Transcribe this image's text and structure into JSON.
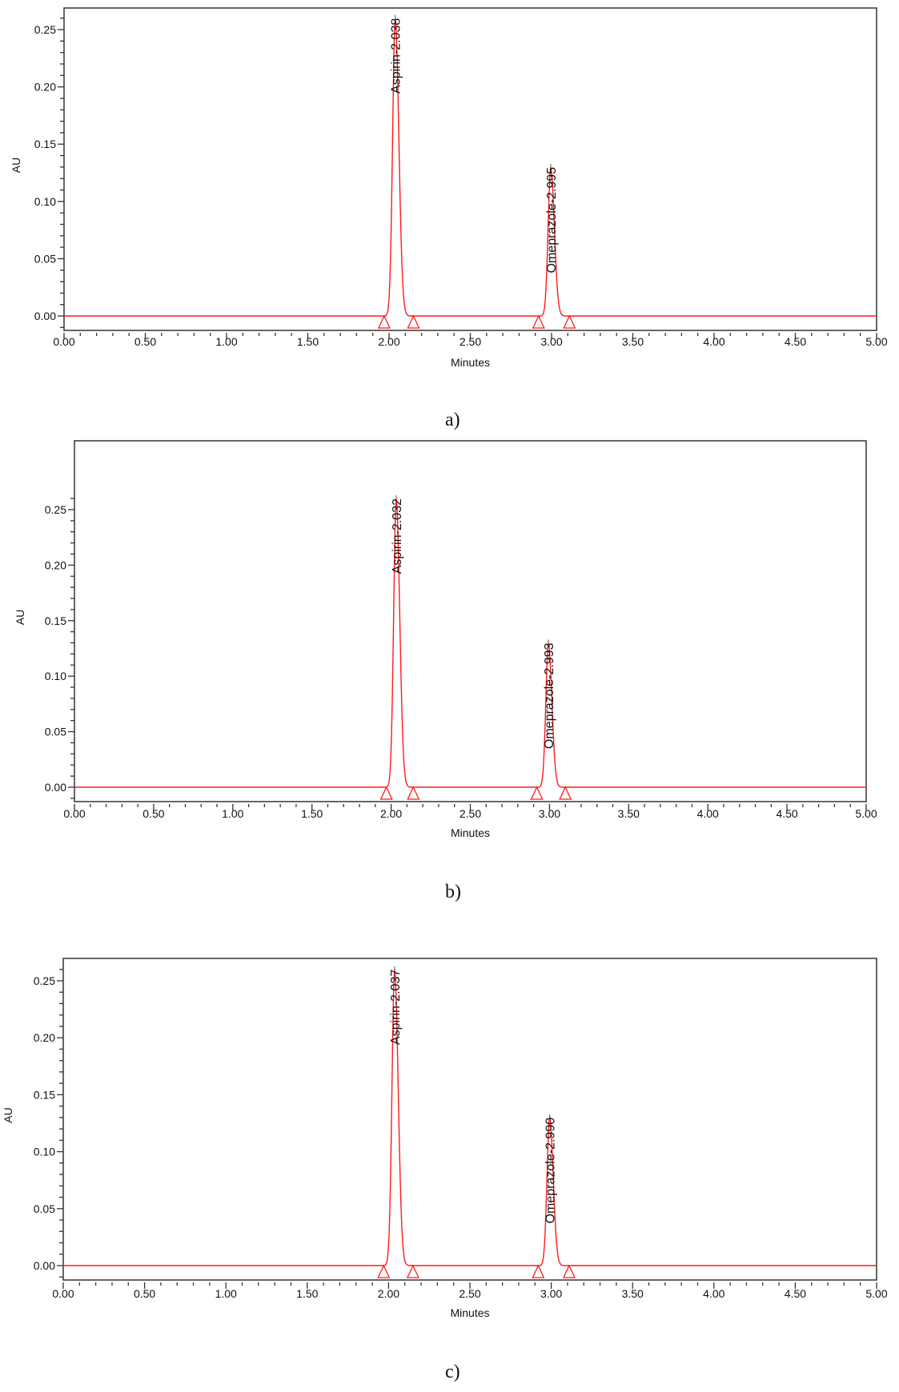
{
  "figure": {
    "panels": [
      {
        "id": "a",
        "caption": "a)"
      },
      {
        "id": "b",
        "caption": "b)"
      },
      {
        "id": "c",
        "caption": "c)"
      }
    ]
  },
  "colors": {
    "trace": "#ff1a1a",
    "axis": "#333333",
    "text": "#111111"
  },
  "chart_data": [
    {
      "type": "line",
      "title": "a)",
      "xlabel": "Minutes",
      "ylabel": "AU",
      "xlim": [
        0.0,
        5.0
      ],
      "ylim": [
        -0.012,
        0.27
      ],
      "xticks": [
        "0.00",
        "0.50",
        "1.00",
        "1.50",
        "2.00",
        "2.50",
        "3.00",
        "3.50",
        "4.00",
        "4.50",
        "5.00"
      ],
      "yticks": [
        "0.00",
        "0.05",
        "0.10",
        "0.15",
        "0.20",
        "0.25"
      ],
      "grid": false,
      "peaks": [
        {
          "name": "Aspirin",
          "label": "Aspirin-2.038",
          "retention_time": 2.038,
          "height": 0.26,
          "start": 1.97,
          "end": 2.15
        },
        {
          "name": "Omeprazole",
          "label": "Omeprazole-2.995",
          "retention_time": 2.995,
          "height": 0.13,
          "start": 2.92,
          "end": 3.11
        }
      ]
    },
    {
      "type": "line",
      "title": "b)",
      "xlabel": "Minutes",
      "ylabel": "AU",
      "xlim": [
        0.0,
        5.0
      ],
      "ylim": [
        -0.012,
        0.27
      ],
      "xticks": [
        "0.00",
        "0.50",
        "1.00",
        "1.50",
        "2.00",
        "2.50",
        "3.00",
        "3.50",
        "4.00",
        "4.50",
        "5.00"
      ],
      "yticks": [
        "0.00",
        "0.05",
        "0.10",
        "0.15",
        "0.20",
        "0.25"
      ],
      "grid": false,
      "peaks": [
        {
          "name": "Aspirin",
          "label": "Aspirin-2.032",
          "retention_time": 2.032,
          "height": 0.26,
          "start": 1.97,
          "end": 2.14
        },
        {
          "name": "Omeprazole",
          "label": "Omeprazole-2.993",
          "retention_time": 2.993,
          "height": 0.13,
          "start": 2.92,
          "end": 3.1
        }
      ]
    },
    {
      "type": "line",
      "title": "c)",
      "xlabel": "Minutes",
      "ylabel": "AU",
      "xlim": [
        0.0,
        5.0
      ],
      "ylim": [
        -0.012,
        0.27
      ],
      "xticks": [
        "0.00",
        "0.50",
        "1.00",
        "1.50",
        "2.00",
        "2.50",
        "3.00",
        "3.50",
        "4.00",
        "4.50",
        "5.00"
      ],
      "yticks": [
        "0.00",
        "0.05",
        "0.10",
        "0.15",
        "0.20",
        "0.25"
      ],
      "grid": false,
      "peaks": [
        {
          "name": "Aspirin",
          "label": "Aspirin-2.037",
          "retention_time": 2.037,
          "height": 0.26,
          "start": 1.97,
          "end": 2.15
        },
        {
          "name": "Omeprazole",
          "label": "Omeprazole-2.990",
          "retention_time": 2.99,
          "height": 0.13,
          "start": 2.92,
          "end": 3.11
        }
      ]
    }
  ]
}
